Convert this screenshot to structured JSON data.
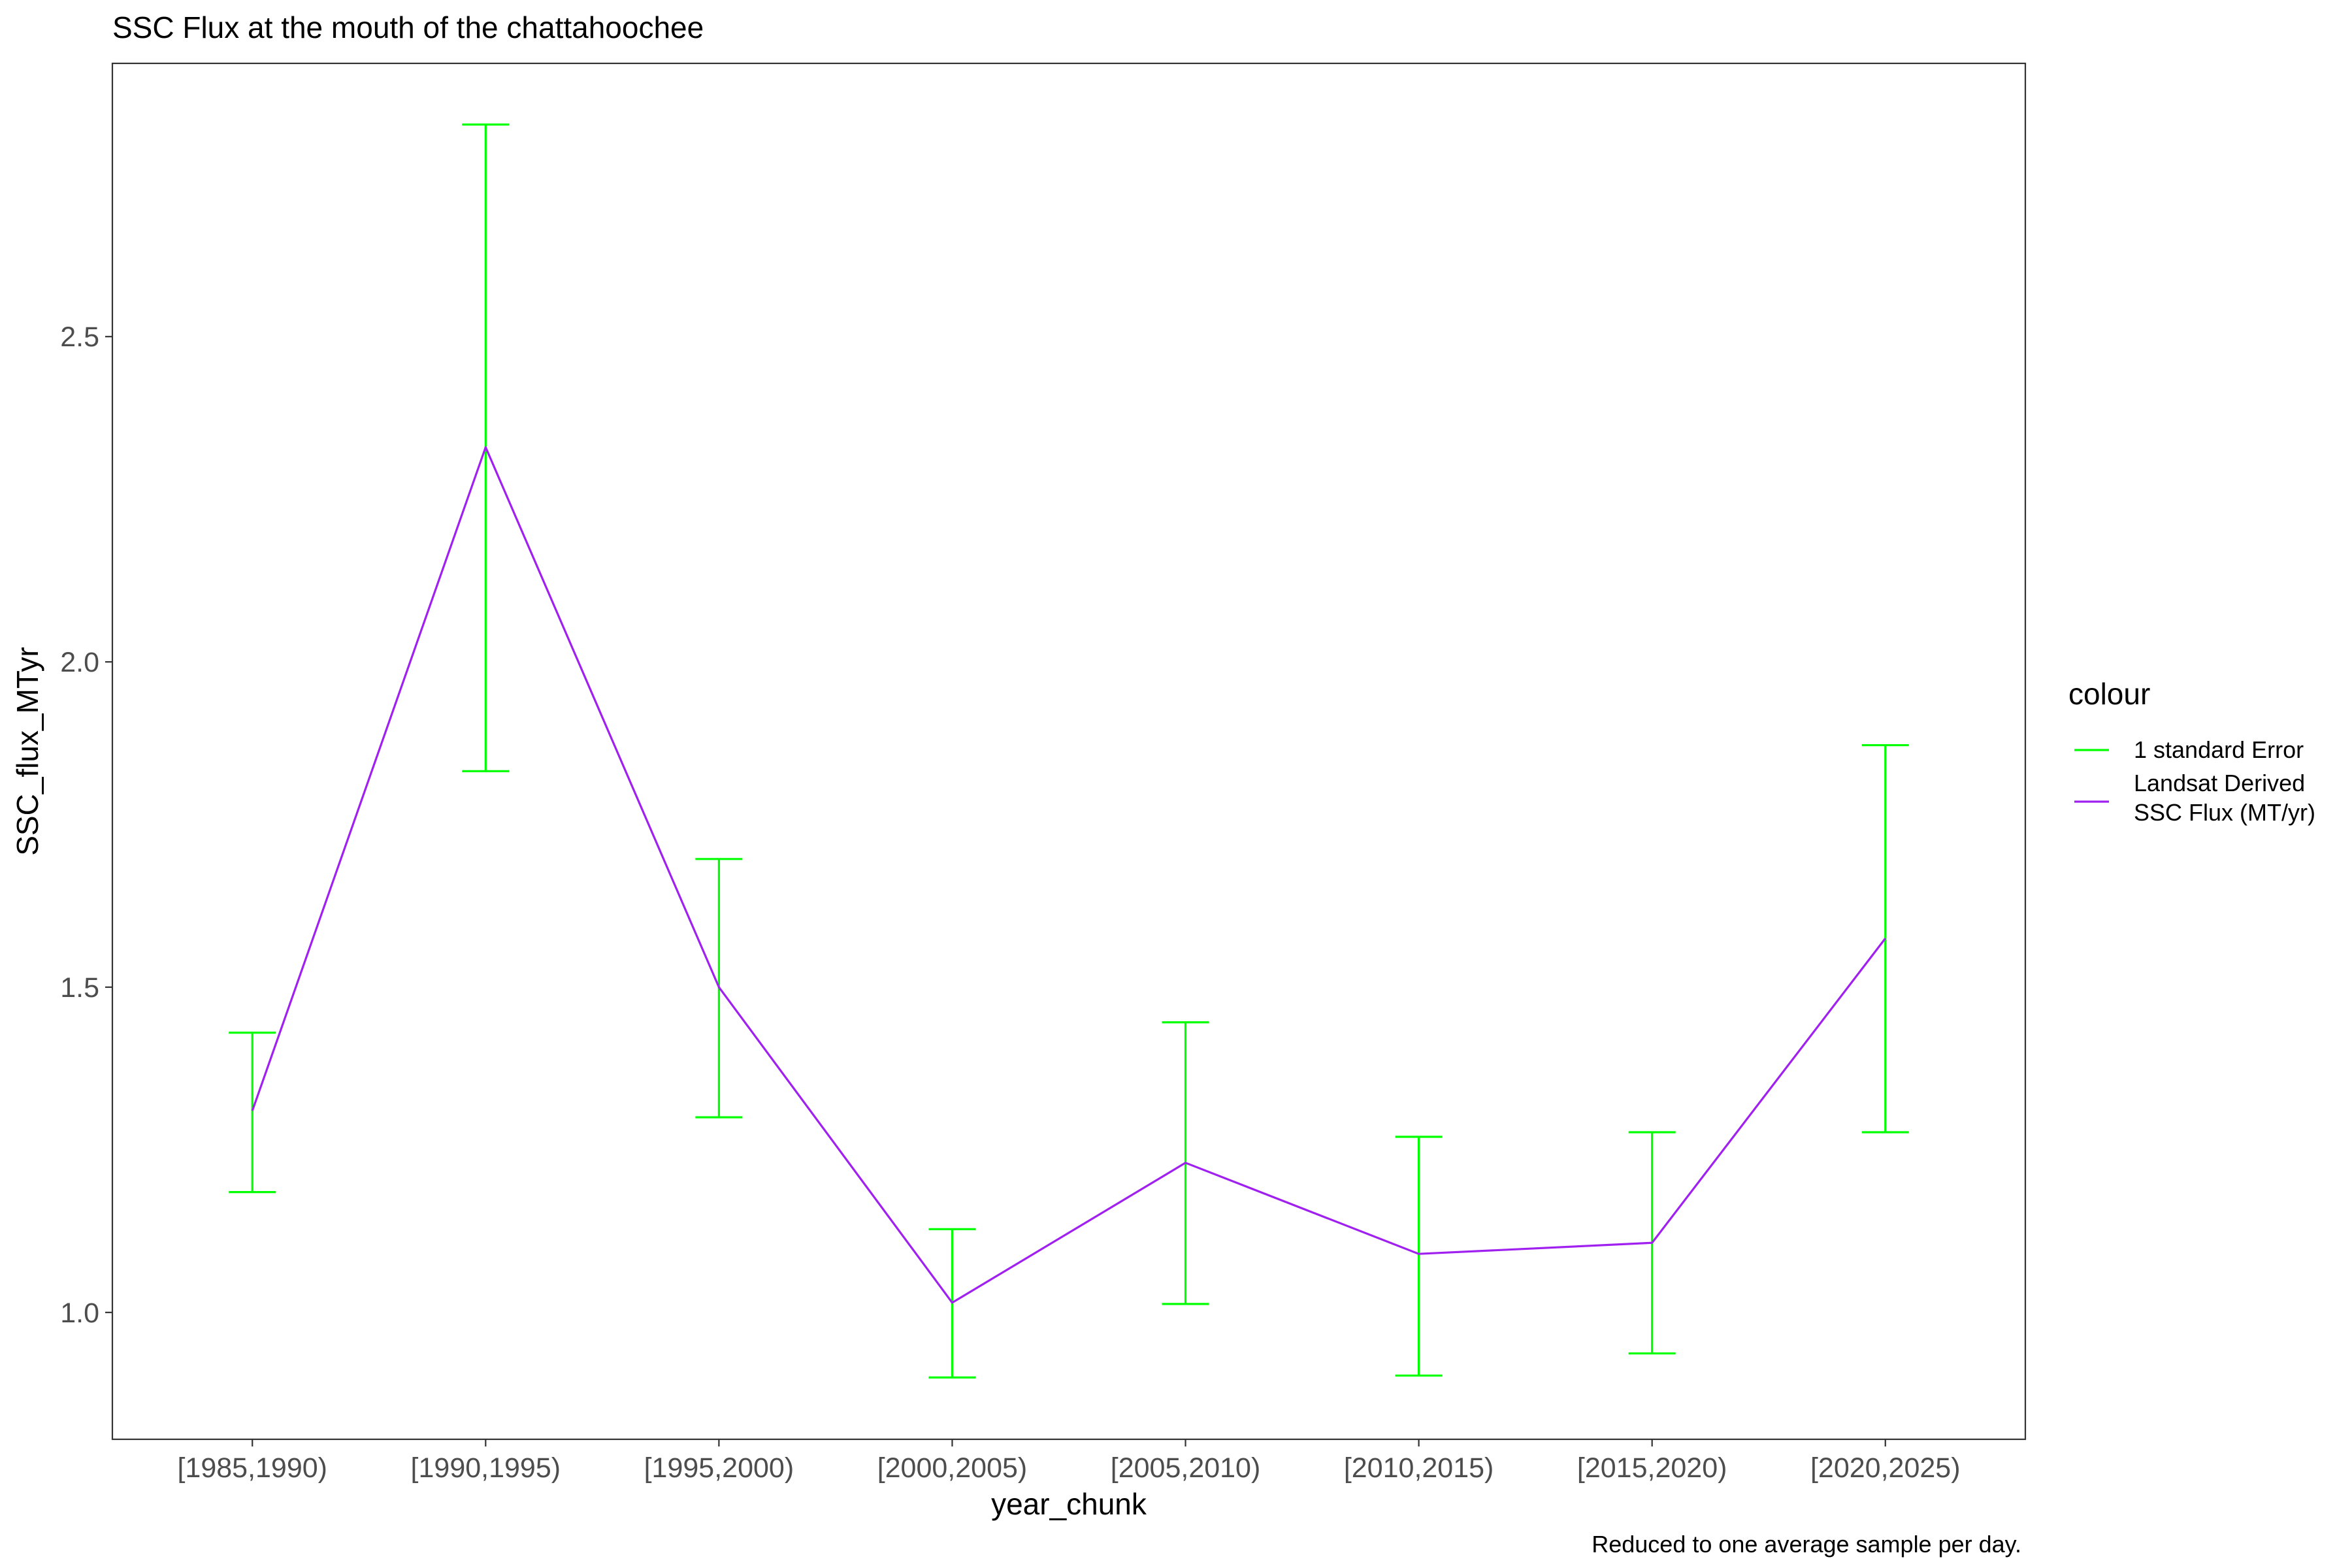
{
  "chart_data": {
    "type": "line",
    "title": "SSC Flux at the mouth of the chattahoochee",
    "xlabel": "year_chunk",
    "ylabel": "SSC_flux_MTyr",
    "caption": "Reduced to one average sample per day.",
    "categories": [
      "[1985,1990)",
      "[1990,1995)",
      "[1995,2000)",
      "[2000,2005)",
      "[2005,2010)",
      "[2010,2015)",
      "[2015,2020)",
      "[2020,2025)"
    ],
    "yticks": [
      1.0,
      1.5,
      2.0,
      2.5
    ],
    "ytick_labels": [
      "1.0",
      "1.5",
      "2.0",
      "2.5"
    ],
    "ylim": [
      0.805,
      2.92
    ],
    "grid": false,
    "legend": {
      "title": "colour",
      "position": "right",
      "entries": [
        {
          "label_lines": [
            "1 standard Error"
          ],
          "color": "#00ff00"
        },
        {
          "label_lines": [
            "Landsat Derived",
            "SSC Flux (MT/yr)"
          ],
          "color": "#a020f0"
        }
      ]
    },
    "series": [
      {
        "legend_label": "Landsat Derived SSC Flux (MT/yr)",
        "kind": "line",
        "color": "#a020f0",
        "values": [
          1.31,
          2.33,
          1.5,
          1.015,
          1.23,
          1.09,
          1.107,
          1.575
        ]
      },
      {
        "legend_label": "1 standard Error",
        "kind": "errorbar",
        "color": "#00ff00",
        "lower": [
          1.185,
          1.832,
          1.3,
          0.9,
          1.013,
          0.903,
          0.937,
          1.277
        ],
        "upper": [
          1.43,
          2.826,
          1.697,
          1.128,
          1.446,
          1.27,
          1.277,
          1.872
        ]
      }
    ]
  }
}
